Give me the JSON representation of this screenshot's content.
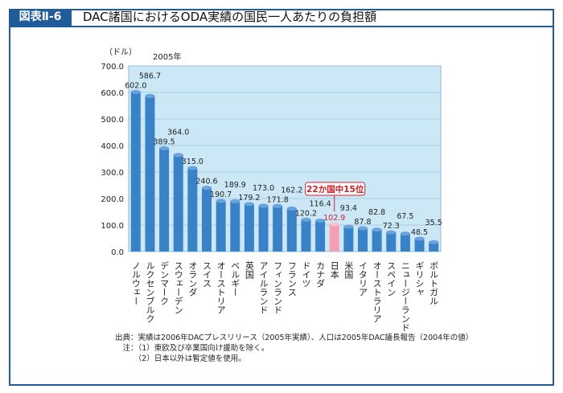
{
  "header": {
    "figure_label": "図表Ⅱ-6",
    "title": "DAC諸国におけるODA実績の国民一人あたりの負担額"
  },
  "colors": {
    "frame": "#1f5c99",
    "plot_bg": "#cce8f7",
    "bar": "#3a82c8",
    "highlight_bar": "#f4a0b4",
    "highlight_text": "#d0202a"
  },
  "chart_data": {
    "type": "bar",
    "title": "",
    "subtitle": "2005年",
    "ylabel": "（ドル）",
    "xlabel": "",
    "ylim": [
      0,
      700
    ],
    "yticks": [
      "0.0",
      "100.0",
      "200.0",
      "300.0",
      "400.0",
      "500.0",
      "600.0",
      "700.0"
    ],
    "grid": true,
    "categories": [
      "ノルウェー",
      "ルクセンブルク",
      "デンマーク",
      "スウェーデン",
      "オランダ",
      "スイス",
      "オーストリア",
      "ベルギー",
      "英国",
      "アイルランド",
      "フィンランド",
      "フランス",
      "ドイツ",
      "カナダ",
      "日本",
      "米国",
      "イタリア",
      "オーストラリア",
      "スペイン",
      "ニュージーランド",
      "ギリシャ",
      "ポルトガル"
    ],
    "values": [
      602.0,
      586.7,
      389.5,
      364.0,
      315.0,
      240.6,
      190.7,
      189.9,
      179.2,
      173.0,
      171.8,
      162.2,
      120.2,
      116.4,
      102.9,
      93.4,
      87.8,
      82.8,
      72.3,
      67.5,
      48.5,
      35.5
    ],
    "highlight": {
      "category": "日本",
      "annotation": "22か国中15位"
    }
  },
  "notes": {
    "source": "出典：実績は2006年DACプレスリリース（2005年実績）、人口は2005年DAC議長報告（2004年の値）",
    "note1": "　注：（1）東欧及び卒業国向け援助を除く。",
    "note2": "　　　（2）日本以外は暫定値を使用。"
  }
}
